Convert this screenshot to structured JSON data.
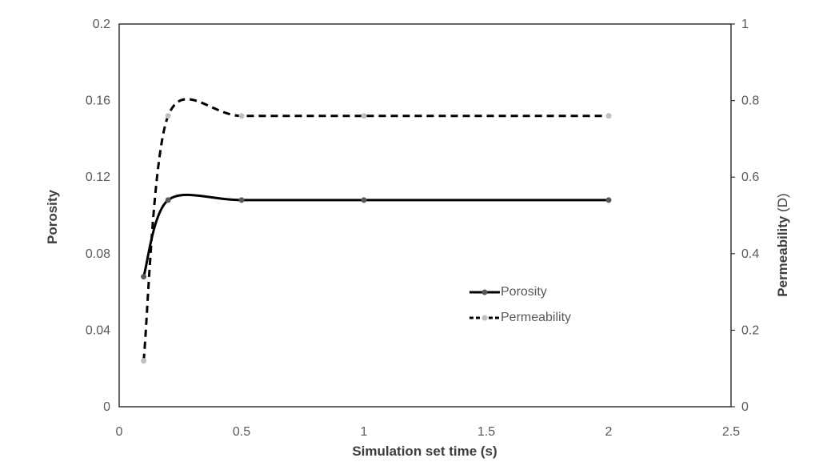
{
  "chart_data": {
    "type": "line",
    "title": "",
    "grid": false,
    "background": "#ffffff",
    "x_axis": {
      "label": "Simulation set time (s)",
      "range": [
        0,
        2.5
      ],
      "tick_values": [
        0,
        0.5,
        1,
        1.5,
        2,
        2.5
      ],
      "tick_labels": [
        "0",
        "0.5",
        "1",
        "1.5",
        "2",
        "2.5"
      ]
    },
    "left_axis": {
      "label": "Porosity",
      "range": [
        0,
        0.2
      ],
      "tick_values": [
        0.2,
        0.16,
        0.12,
        0.08,
        0.04,
        0
      ],
      "tick_labels": [
        "0.2",
        "0.16",
        "0.12",
        "0.08",
        "0.04",
        "0"
      ]
    },
    "right_axis": {
      "label": "Permeability (D)",
      "label_main": "Permeability",
      "label_unit": "(D)",
      "range": [
        0,
        1
      ],
      "tick_values": [
        1,
        0.8,
        0.6,
        0.4,
        0.2,
        0
      ],
      "tick_labels": [
        "1",
        "0.8",
        "0.6",
        "0.4",
        "0.2",
        "0"
      ]
    },
    "series": [
      {
        "name": "Porosity",
        "axis": "left",
        "line_style": "solid",
        "line_color": "#000000",
        "marker_color": "#595959",
        "smoothed": true,
        "points": [
          {
            "x": 0.1,
            "y": 0.068
          },
          {
            "x": 0.2,
            "y": 0.108
          },
          {
            "x": 0.5,
            "y": 0.108
          },
          {
            "x": 1,
            "y": 0.108
          },
          {
            "x": 2,
            "y": 0.108
          }
        ]
      },
      {
        "name": "Permeability",
        "axis": "right",
        "line_style": "dashed",
        "line_color": "#000000",
        "marker_color": "#bfbfbf",
        "smoothed": true,
        "points": [
          {
            "x": 0.1,
            "y": 0.12
          },
          {
            "x": 0.2,
            "y": 0.76
          },
          {
            "x": 0.5,
            "y": 0.76
          },
          {
            "x": 1,
            "y": 0.76
          },
          {
            "x": 2,
            "y": 0.76
          }
        ]
      }
    ],
    "legend": {
      "position": "inside-right",
      "entries": [
        "Porosity",
        "Permeability"
      ]
    },
    "colors": {
      "axis_line": "#333333",
      "tick_text": "#595959",
      "title_text": "#404040"
    }
  }
}
